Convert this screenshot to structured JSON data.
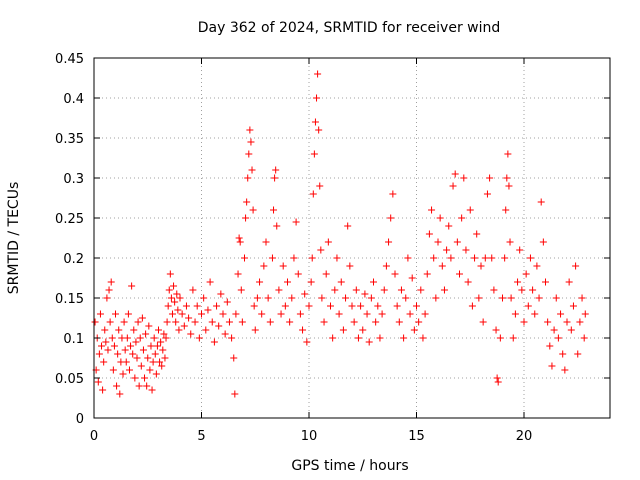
{
  "chart_data": {
    "type": "scatter",
    "title": "Day 362 of 2024, SRMTID for receiver wind",
    "xlabel": "GPS time / hours",
    "ylabel": "SRMTID / TECUs",
    "xlim": [
      0,
      24
    ],
    "ylim": [
      0,
      0.45
    ],
    "xticks": [
      0,
      5,
      10,
      15,
      20
    ],
    "xtick_labels": [
      "0",
      "5",
      "10",
      "15",
      "20"
    ],
    "yticks": [
      0,
      0.05,
      0.1,
      0.15,
      0.2,
      0.25,
      0.3,
      0.35,
      0.4,
      0.45
    ],
    "ytick_labels": [
      "0",
      "0.05",
      "0.1",
      "0.15",
      "0.2",
      "0.25",
      "0.3",
      "0.35",
      "0.4",
      "0.45"
    ],
    "grid": true,
    "marker": "+",
    "color": "#ff0000",
    "series": [
      {
        "name": "SRMTID",
        "points": [
          [
            0.05,
            0.12
          ],
          [
            0.1,
            0.06
          ],
          [
            0.15,
            0.1
          ],
          [
            0.2,
            0.045
          ],
          [
            0.25,
            0.08
          ],
          [
            0.3,
            0.13
          ],
          [
            0.35,
            0.09
          ],
          [
            0.4,
            0.035
          ],
          [
            0.45,
            0.07
          ],
          [
            0.5,
            0.11
          ],
          [
            0.55,
            0.095
          ],
          [
            0.6,
            0.15
          ],
          [
            0.65,
            0.085
          ],
          [
            0.7,
            0.16
          ],
          [
            0.75,
            0.12
          ],
          [
            0.8,
            0.17
          ],
          [
            0.85,
            0.1
          ],
          [
            0.9,
            0.06
          ],
          [
            0.95,
            0.09
          ],
          [
            1.0,
            0.13
          ],
          [
            1.05,
            0.04
          ],
          [
            1.1,
            0.08
          ],
          [
            1.15,
            0.11
          ],
          [
            1.2,
            0.03
          ],
          [
            1.25,
            0.07
          ],
          [
            1.3,
            0.1
          ],
          [
            1.35,
            0.055
          ],
          [
            1.4,
            0.12
          ],
          [
            1.45,
            0.085
          ],
          [
            1.5,
            0.07
          ],
          [
            1.55,
            0.1
          ],
          [
            1.6,
            0.13
          ],
          [
            1.65,
            0.06
          ],
          [
            1.7,
            0.09
          ],
          [
            1.75,
            0.165
          ],
          [
            1.8,
            0.08
          ],
          [
            1.85,
            0.11
          ],
          [
            1.9,
            0.05
          ],
          [
            1.95,
            0.095
          ],
          [
            2.0,
            0.075
          ],
          [
            2.05,
            0.12
          ],
          [
            2.1,
            0.04
          ],
          [
            2.15,
            0.1
          ],
          [
            2.2,
            0.065
          ],
          [
            2.25,
            0.125
          ],
          [
            2.3,
            0.085
          ],
          [
            2.35,
            0.05
          ],
          [
            2.4,
            0.105
          ],
          [
            2.45,
            0.04
          ],
          [
            2.5,
            0.075
          ],
          [
            2.55,
            0.115
          ],
          [
            2.6,
            0.06
          ],
          [
            2.65,
            0.09
          ],
          [
            2.7,
            0.035
          ],
          [
            2.75,
            0.07
          ],
          [
            2.8,
            0.1
          ],
          [
            2.85,
            0.08
          ],
          [
            2.9,
            0.055
          ],
          [
            2.95,
            0.09
          ],
          [
            3.0,
            0.11
          ],
          [
            3.05,
            0.07
          ],
          [
            3.1,
            0.095
          ],
          [
            3.15,
            0.065
          ],
          [
            3.2,
            0.085
          ],
          [
            3.25,
            0.105
          ],
          [
            3.3,
            0.075
          ],
          [
            3.35,
            0.1
          ],
          [
            3.4,
            0.12
          ],
          [
            3.45,
            0.14
          ],
          [
            3.5,
            0.16
          ],
          [
            3.55,
            0.18
          ],
          [
            3.6,
            0.15
          ],
          [
            3.65,
            0.13
          ],
          [
            3.7,
            0.165
          ],
          [
            3.75,
            0.145
          ],
          [
            3.8,
            0.12
          ],
          [
            3.85,
            0.155
          ],
          [
            3.9,
            0.135
          ],
          [
            3.95,
            0.11
          ],
          [
            4.0,
            0.15
          ],
          [
            4.1,
            0.13
          ],
          [
            4.2,
            0.115
          ],
          [
            4.3,
            0.14
          ],
          [
            4.4,
            0.125
          ],
          [
            4.5,
            0.105
          ],
          [
            4.6,
            0.16
          ],
          [
            4.7,
            0.12
          ],
          [
            4.8,
            0.14
          ],
          [
            4.9,
            0.1
          ],
          [
            5.0,
            0.13
          ],
          [
            5.1,
            0.15
          ],
          [
            5.2,
            0.11
          ],
          [
            5.3,
            0.135
          ],
          [
            5.4,
            0.17
          ],
          [
            5.5,
            0.12
          ],
          [
            5.6,
            0.095
          ],
          [
            5.7,
            0.14
          ],
          [
            5.8,
            0.115
          ],
          [
            5.9,
            0.155
          ],
          [
            6.0,
            0.13
          ],
          [
            6.1,
            0.105
          ],
          [
            6.2,
            0.145
          ],
          [
            6.3,
            0.12
          ],
          [
            6.4,
            0.1
          ],
          [
            6.5,
            0.075
          ],
          [
            6.55,
            0.03
          ],
          [
            6.6,
            0.13
          ],
          [
            6.7,
            0.18
          ],
          [
            6.75,
            0.225
          ],
          [
            6.8,
            0.22
          ],
          [
            6.85,
            0.16
          ],
          [
            6.9,
            0.12
          ],
          [
            7.0,
            0.2
          ],
          [
            7.05,
            0.25
          ],
          [
            7.1,
            0.27
          ],
          [
            7.15,
            0.3
          ],
          [
            7.2,
            0.33
          ],
          [
            7.25,
            0.36
          ],
          [
            7.3,
            0.345
          ],
          [
            7.35,
            0.31
          ],
          [
            7.4,
            0.26
          ],
          [
            7.45,
            0.14
          ],
          [
            7.5,
            0.11
          ],
          [
            7.6,
            0.15
          ],
          [
            7.7,
            0.17
          ],
          [
            7.8,
            0.13
          ],
          [
            7.9,
            0.19
          ],
          [
            8.0,
            0.22
          ],
          [
            8.1,
            0.15
          ],
          [
            8.2,
            0.12
          ],
          [
            8.3,
            0.2
          ],
          [
            8.35,
            0.26
          ],
          [
            8.4,
            0.3
          ],
          [
            8.45,
            0.31
          ],
          [
            8.5,
            0.24
          ],
          [
            8.6,
            0.16
          ],
          [
            8.7,
            0.13
          ],
          [
            8.8,
            0.19
          ],
          [
            8.9,
            0.14
          ],
          [
            9.0,
            0.17
          ],
          [
            9.1,
            0.12
          ],
          [
            9.2,
            0.15
          ],
          [
            9.3,
            0.2
          ],
          [
            9.4,
            0.245
          ],
          [
            9.5,
            0.18
          ],
          [
            9.6,
            0.13
          ],
          [
            9.7,
            0.11
          ],
          [
            9.8,
            0.155
          ],
          [
            9.9,
            0.095
          ],
          [
            10.0,
            0.14
          ],
          [
            10.1,
            0.17
          ],
          [
            10.15,
            0.2
          ],
          [
            10.2,
            0.28
          ],
          [
            10.25,
            0.33
          ],
          [
            10.3,
            0.37
          ],
          [
            10.35,
            0.4
          ],
          [
            10.4,
            0.43
          ],
          [
            10.45,
            0.36
          ],
          [
            10.5,
            0.29
          ],
          [
            10.55,
            0.21
          ],
          [
            10.6,
            0.15
          ],
          [
            10.7,
            0.12
          ],
          [
            10.8,
            0.18
          ],
          [
            10.9,
            0.22
          ],
          [
            11.0,
            0.14
          ],
          [
            11.1,
            0.1
          ],
          [
            11.2,
            0.16
          ],
          [
            11.3,
            0.2
          ],
          [
            11.4,
            0.13
          ],
          [
            11.5,
            0.17
          ],
          [
            11.6,
            0.11
          ],
          [
            11.7,
            0.15
          ],
          [
            11.8,
            0.24
          ],
          [
            11.9,
            0.19
          ],
          [
            12.0,
            0.14
          ],
          [
            12.1,
            0.12
          ],
          [
            12.2,
            0.16
          ],
          [
            12.3,
            0.1
          ],
          [
            12.4,
            0.14
          ],
          [
            12.5,
            0.11
          ],
          [
            12.6,
            0.155
          ],
          [
            12.7,
            0.13
          ],
          [
            12.8,
            0.095
          ],
          [
            12.9,
            0.15
          ],
          [
            13.0,
            0.17
          ],
          [
            13.1,
            0.12
          ],
          [
            13.2,
            0.14
          ],
          [
            13.3,
            0.1
          ],
          [
            13.4,
            0.13
          ],
          [
            13.5,
            0.16
          ],
          [
            13.6,
            0.19
          ],
          [
            13.7,
            0.22
          ],
          [
            13.8,
            0.25
          ],
          [
            13.9,
            0.28
          ],
          [
            14.0,
            0.18
          ],
          [
            14.1,
            0.14
          ],
          [
            14.2,
            0.12
          ],
          [
            14.3,
            0.16
          ],
          [
            14.4,
            0.1
          ],
          [
            14.5,
            0.15
          ],
          [
            14.6,
            0.2
          ],
          [
            14.7,
            0.13
          ],
          [
            14.8,
            0.175
          ],
          [
            14.9,
            0.11
          ],
          [
            15.0,
            0.14
          ],
          [
            15.1,
            0.12
          ],
          [
            15.2,
            0.16
          ],
          [
            15.3,
            0.1
          ],
          [
            15.4,
            0.13
          ],
          [
            15.5,
            0.18
          ],
          [
            15.6,
            0.23
          ],
          [
            15.7,
            0.26
          ],
          [
            15.8,
            0.2
          ],
          [
            15.9,
            0.15
          ],
          [
            16.0,
            0.22
          ],
          [
            16.1,
            0.25
          ],
          [
            16.2,
            0.19
          ],
          [
            16.3,
            0.16
          ],
          [
            16.4,
            0.21
          ],
          [
            16.5,
            0.24
          ],
          [
            16.6,
            0.2
          ],
          [
            16.7,
            0.29
          ],
          [
            16.8,
            0.305
          ],
          [
            16.9,
            0.22
          ],
          [
            17.0,
            0.18
          ],
          [
            17.1,
            0.25
          ],
          [
            17.2,
            0.3
          ],
          [
            17.3,
            0.21
          ],
          [
            17.4,
            0.17
          ],
          [
            17.5,
            0.26
          ],
          [
            17.6,
            0.14
          ],
          [
            17.7,
            0.2
          ],
          [
            17.8,
            0.23
          ],
          [
            17.9,
            0.15
          ],
          [
            18.0,
            0.19
          ],
          [
            18.1,
            0.12
          ],
          [
            18.2,
            0.2
          ],
          [
            18.3,
            0.28
          ],
          [
            18.4,
            0.3
          ],
          [
            18.5,
            0.2
          ],
          [
            18.6,
            0.16
          ],
          [
            18.7,
            0.11
          ],
          [
            18.75,
            0.05
          ],
          [
            18.8,
            0.045
          ],
          [
            18.9,
            0.1
          ],
          [
            19.0,
            0.15
          ],
          [
            19.1,
            0.2
          ],
          [
            19.15,
            0.26
          ],
          [
            19.2,
            0.3
          ],
          [
            19.25,
            0.33
          ],
          [
            19.3,
            0.29
          ],
          [
            19.35,
            0.22
          ],
          [
            19.4,
            0.15
          ],
          [
            19.5,
            0.1
          ],
          [
            19.6,
            0.13
          ],
          [
            19.7,
            0.17
          ],
          [
            19.8,
            0.21
          ],
          [
            19.9,
            0.16
          ],
          [
            20.0,
            0.12
          ],
          [
            20.1,
            0.18
          ],
          [
            20.2,
            0.14
          ],
          [
            20.3,
            0.2
          ],
          [
            20.4,
            0.16
          ],
          [
            20.5,
            0.13
          ],
          [
            20.6,
            0.19
          ],
          [
            20.7,
            0.15
          ],
          [
            20.8,
            0.27
          ],
          [
            20.9,
            0.22
          ],
          [
            21.0,
            0.17
          ],
          [
            21.1,
            0.12
          ],
          [
            21.2,
            0.09
          ],
          [
            21.3,
            0.065
          ],
          [
            21.4,
            0.11
          ],
          [
            21.5,
            0.15
          ],
          [
            21.6,
            0.1
          ],
          [
            21.7,
            0.13
          ],
          [
            21.8,
            0.08
          ],
          [
            21.9,
            0.06
          ],
          [
            22.0,
            0.12
          ],
          [
            22.1,
            0.17
          ],
          [
            22.2,
            0.11
          ],
          [
            22.3,
            0.14
          ],
          [
            22.4,
            0.19
          ],
          [
            22.5,
            0.08
          ],
          [
            22.6,
            0.12
          ],
          [
            22.7,
            0.15
          ],
          [
            22.8,
            0.1
          ],
          [
            22.85,
            0.13
          ]
        ]
      }
    ]
  }
}
